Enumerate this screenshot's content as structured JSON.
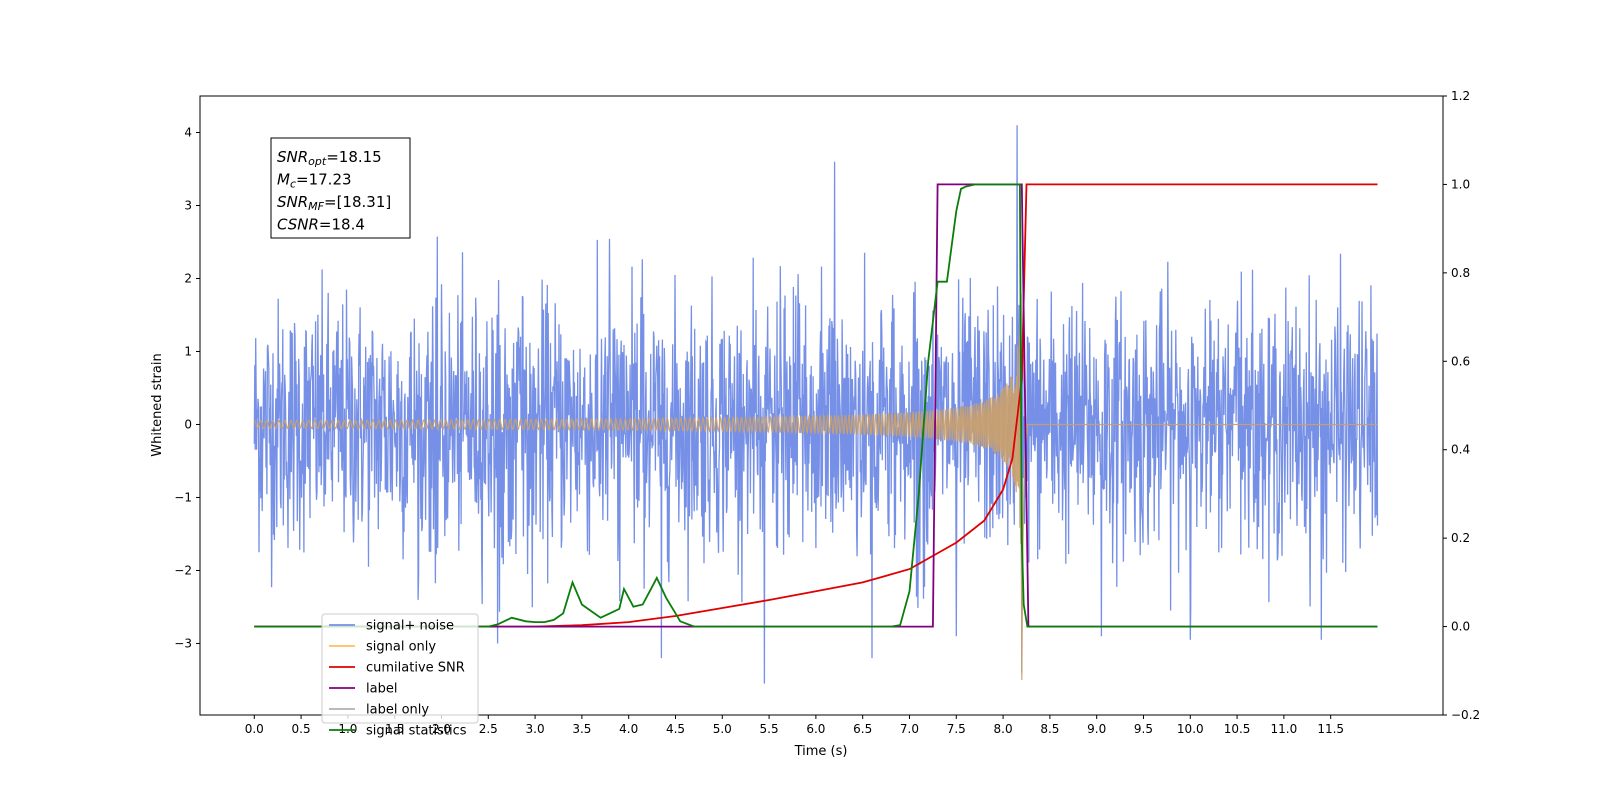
{
  "chart_data": {
    "type": "line",
    "xlabel": "Time (s)",
    "ylabel": "Whitened strain",
    "xlim": [
      -0.58,
      12.7
    ],
    "ylim_left": [
      -3.98,
      4.5
    ],
    "ylim_right": [
      -0.2,
      1.2
    ],
    "xticks": [
      0.0,
      0.5,
      1.0,
      1.5,
      2.0,
      2.5,
      3.0,
      3.5,
      4.0,
      4.5,
      5.0,
      5.5,
      6.0,
      6.5,
      7.0,
      7.5,
      8.0,
      8.5,
      9.0,
      9.5,
      10.0,
      10.5,
      11.0,
      11.5
    ],
    "xtick_labels": [
      "0.0",
      "0.5",
      "1.0",
      "1.5",
      "2.0",
      "2.5",
      "3.0",
      "3.5",
      "4.0",
      "4.5",
      "5.0",
      "5.5",
      "6.0",
      "6.5",
      "7.0",
      "7.5",
      "8.0",
      "8.5",
      "9.0",
      "9.5",
      "10.0",
      "10.5",
      "11.0",
      "11.5"
    ],
    "yticks_left": [
      -3,
      -2,
      -1,
      0,
      1,
      2,
      3,
      4
    ],
    "yticks_left_labels": [
      "−3",
      "−2",
      "−1",
      "0",
      "1",
      "2",
      "3",
      "4"
    ],
    "yticks_right": [
      -0.2,
      0.0,
      0.2,
      0.4,
      0.6,
      0.8,
      1.0,
      1.2
    ],
    "yticks_right_labels": [
      "−0.2",
      "0.0",
      "0.2",
      "0.4",
      "0.6",
      "0.8",
      "1.0",
      "1.2"
    ],
    "annotation": {
      "lines": [
        {
          "sym": "SNR",
          "sub": "opt",
          "val": "=18.15"
        },
        {
          "sym": "M",
          "sub": "c",
          "val": "=17.23"
        },
        {
          "sym": "SNR",
          "sub": "MF",
          "val": "=[18.31]"
        },
        {
          "sym": "CSNR",
          "sub": "",
          "val": "=18.4"
        }
      ]
    },
    "legend_placement": "lower-left",
    "grid": false,
    "series": [
      {
        "name": "signal+ noise",
        "color": "#7590e6",
        "axis": "left",
        "kind": "noise",
        "x_range": [
          0.0,
          12.0
        ],
        "noise_std": 0.85,
        "noise_max": 2.6,
        "noise_min": -2.6,
        "spikes": [
          [
            6.2,
            3.6
          ],
          [
            8.15,
            4.1
          ],
          [
            8.2,
            -3.4
          ],
          [
            5.45,
            -3.55
          ],
          [
            6.6,
            -3.2
          ],
          [
            4.35,
            -3.2
          ],
          [
            2.6,
            -3.0
          ],
          [
            7.5,
            -2.9
          ],
          [
            10.0,
            -2.95
          ],
          [
            11.4,
            -2.95
          ],
          [
            9.05,
            -2.9
          ]
        ]
      },
      {
        "name": "signal only",
        "color": "#ffbe5c",
        "axis": "left",
        "kind": "chirp",
        "x_range": [
          0.0,
          12.0
        ],
        "merger_time": 8.2,
        "peak_amplitude": 2.2,
        "min_value": -3.5
      },
      {
        "name": "cumilative SNR",
        "color": "#e00000",
        "axis": "right",
        "kind": "line",
        "x": [
          0.0,
          3.0,
          3.5,
          4.0,
          4.5,
          5.0,
          5.5,
          6.0,
          6.5,
          7.0,
          7.5,
          7.8,
          8.0,
          8.1,
          8.2,
          8.25,
          12.0
        ],
        "y": [
          0.0,
          0.0,
          0.003,
          0.01,
          0.024,
          0.042,
          0.06,
          0.08,
          0.1,
          0.13,
          0.19,
          0.24,
          0.31,
          0.38,
          0.56,
          1.0,
          1.0
        ]
      },
      {
        "name": "label",
        "color": "#800080",
        "axis": "right",
        "kind": "line",
        "x": [
          0.0,
          7.25,
          7.3,
          8.2,
          8.27,
          8.3,
          12.0
        ],
        "y": [
          0.0,
          0.0,
          1.0,
          1.0,
          0.0,
          0.0,
          0.0
        ]
      },
      {
        "name": "label only",
        "color": "#b0b0b0",
        "axis": "right",
        "kind": "legend-only"
      },
      {
        "name": "signal statistics",
        "color": "#0a7d0a",
        "axis": "right",
        "kind": "line",
        "x": [
          0.0,
          2.5,
          2.6,
          2.75,
          2.9,
          3.0,
          3.1,
          3.2,
          3.3,
          3.4,
          3.5,
          3.6,
          3.7,
          3.8,
          3.9,
          3.95,
          4.05,
          4.15,
          4.25,
          4.3,
          4.4,
          4.5,
          4.55,
          4.7,
          6.8,
          6.9,
          7.0,
          7.1,
          7.2,
          7.3,
          7.4,
          7.45,
          7.5,
          7.55,
          7.6,
          7.7,
          8.18,
          8.2,
          8.22,
          8.26,
          8.3,
          12.0
        ],
        "y": [
          0.0,
          0.0,
          0.005,
          0.02,
          0.012,
          0.01,
          0.01,
          0.015,
          0.03,
          0.1,
          0.05,
          0.035,
          0.02,
          0.03,
          0.04,
          0.085,
          0.045,
          0.05,
          0.09,
          0.11,
          0.065,
          0.03,
          0.012,
          0.0,
          0.0,
          0.003,
          0.08,
          0.3,
          0.6,
          0.78,
          0.78,
          0.86,
          0.94,
          0.99,
          0.995,
          1.0,
          1.0,
          0.2,
          0.05,
          0.0,
          0.0,
          0.0
        ]
      }
    ]
  }
}
